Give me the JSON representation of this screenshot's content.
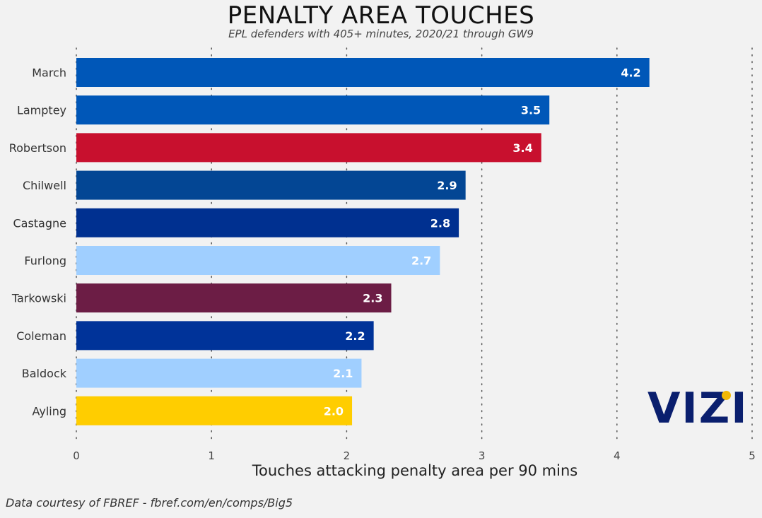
{
  "header": {
    "title": "PENALTY AREA TOUCHES",
    "subtitle": "EPL defenders with 405+ minutes, 2020/21 through GW9"
  },
  "footer": {
    "source": "Data courtesy of FBREF - fbref.com/en/comps/Big5"
  },
  "logo": {
    "text": "VIZI",
    "color": "#0a1f6e",
    "dot_color": "#f2b705"
  },
  "chart_data": {
    "type": "bar",
    "orientation": "horizontal",
    "title": "PENALTY AREA TOUCHES",
    "subtitle": "EPL defenders with 405+ minutes, 2020/21 through GW9",
    "xlabel": "Touches attacking penalty area per 90 mins",
    "ylabel": "",
    "xlim": [
      0,
      5
    ],
    "xticks": [
      "0",
      "1",
      "2",
      "3",
      "4",
      "5"
    ],
    "grid": "vertical-dotted",
    "categories": [
      "March",
      "Lamptey",
      "Robertson",
      "Chilwell",
      "Castagne",
      "Furlong",
      "Tarkowski",
      "Coleman",
      "Baldock",
      "Ayling"
    ],
    "values": [
      4.24,
      3.5,
      3.44,
      2.88,
      2.83,
      2.69,
      2.33,
      2.2,
      2.11,
      2.04
    ],
    "data_labels": [
      "4.2",
      "3.5",
      "3.4",
      "2.9",
      "2.8",
      "2.7",
      "2.3",
      "2.2",
      "2.1",
      "2.0"
    ],
    "colors": [
      "#0057b8",
      "#0057b8",
      "#c8102e",
      "#034694",
      "#003090",
      "#a0cfff",
      "#6c1d45",
      "#003399",
      "#a0cfff",
      "#ffcd00"
    ]
  }
}
